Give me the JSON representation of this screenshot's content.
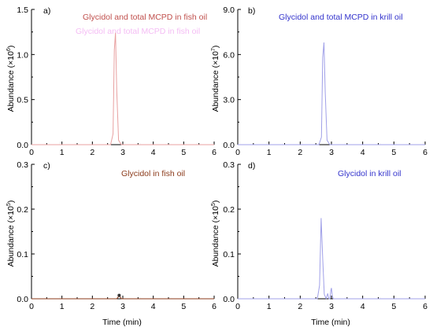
{
  "figure": {
    "panels": [
      {
        "panel_label": "a)",
        "ylabel": "Abundance",
        "ylabel_multiplier": "(×10",
        "ylabel_exponent": "6",
        "ylabel_close": ")",
        "legend": "Glycidol and total MCPD in fish oil",
        "legend_ghost": "Glycidol and total MCPD in fish oil",
        "legend_color": "#c0504d",
        "ghost_color": "#e040e0",
        "xlabel": "",
        "yticks": [
          "0.0",
          "0.5",
          "1.0",
          "1.5"
        ],
        "xticks": [
          "0",
          "1",
          "2",
          "3",
          "4",
          "5",
          "6"
        ]
      },
      {
        "panel_label": "b)",
        "ylabel": "Abundance",
        "ylabel_multiplier": "(×10",
        "ylabel_exponent": "7",
        "ylabel_close": ")",
        "legend": "Glycidol and total MCPD in krill oil",
        "legend_color": "#3333cc",
        "xlabel": "",
        "yticks": [
          "0.0",
          "3.0",
          "6.0",
          "9.0"
        ],
        "xticks": [
          "0",
          "1",
          "2",
          "3",
          "4",
          "5",
          "6"
        ]
      },
      {
        "panel_label": "c)",
        "ylabel": "Abundance",
        "ylabel_multiplier": "(×10",
        "ylabel_exponent": "5",
        "ylabel_close": ")",
        "legend": "Glycidol in fish oil",
        "legend_color": "#8b3a1a",
        "xlabel": "Time (min)",
        "yticks": [
          "0.0",
          "0.1",
          "0.2",
          "0.3"
        ],
        "xticks": [
          "0",
          "1",
          "2",
          "3",
          "4",
          "5",
          "6"
        ]
      },
      {
        "panel_label": "d)",
        "ylabel": "Abundance",
        "ylabel_multiplier": "(×10",
        "ylabel_exponent": "5",
        "ylabel_close": ")",
        "legend": "Glycidol in krill oil",
        "legend_color": "#3333cc",
        "xlabel": "Time (min)",
        "yticks": [
          "0.0",
          "0.1",
          "0.2",
          "0.3"
        ],
        "xticks": [
          "0",
          "1",
          "2",
          "3",
          "4",
          "5",
          "6"
        ]
      }
    ]
  },
  "chart_data": [
    {
      "type": "line",
      "panel": "a)",
      "title": "",
      "xlabel": "",
      "ylabel": "Abundance (×10^6)",
      "xlim": [
        0,
        6
      ],
      "ylim": [
        0,
        1.5
      ],
      "grid": false,
      "legend_placement": "top-center",
      "series": [
        {
          "name": "Glycidol and total MCPD in fish oil",
          "color": "#e8a0a0",
          "x": [
            0,
            2.6,
            2.68,
            2.72,
            2.76,
            2.8,
            2.86,
            2.95,
            6
          ],
          "y": [
            0,
            0,
            0.12,
            1.05,
            1.24,
            0.6,
            0.05,
            0,
            0
          ]
        }
      ]
    },
    {
      "type": "line",
      "panel": "b)",
      "title": "",
      "xlabel": "",
      "ylabel": "Abundance (×10^7)",
      "xlim": [
        0,
        6
      ],
      "ylim": [
        0,
        9.0
      ],
      "grid": false,
      "legend_placement": "top-center",
      "series": [
        {
          "name": "Glycidol and total MCPD in krill oil",
          "color": "#a0a0e8",
          "x": [
            0,
            2.6,
            2.68,
            2.72,
            2.76,
            2.8,
            2.86,
            2.95,
            6
          ],
          "y": [
            0,
            0,
            0.5,
            5.8,
            6.8,
            3.5,
            0.3,
            0,
            0
          ]
        }
      ]
    },
    {
      "type": "line",
      "panel": "c)",
      "title": "",
      "xlabel": "Time (min)",
      "ylabel": "Abundance (×10^5)",
      "xlim": [
        0,
        6
      ],
      "ylim": [
        0,
        0.3
      ],
      "grid": false,
      "legend_placement": "top-right",
      "series": [
        {
          "name": "Glycidol in fish oil",
          "color": "#8b3a1a",
          "x": [
            0,
            2.8,
            2.85,
            2.9,
            2.95,
            6
          ],
          "y": [
            0,
            0,
            0.004,
            0.006,
            0,
            0
          ]
        }
      ],
      "markers": [
        {
          "x": 2.88,
          "y": 0.006
        }
      ]
    },
    {
      "type": "line",
      "panel": "d)",
      "title": "",
      "xlabel": "Time (min)",
      "ylabel": "Abundance (×10^5)",
      "xlim": [
        0,
        6
      ],
      "ylim": [
        0,
        0.3
      ],
      "grid": false,
      "legend_placement": "top-right",
      "series": [
        {
          "name": "Glycidol in krill oil",
          "color": "#a0a0e8",
          "x": [
            0,
            2.55,
            2.62,
            2.67,
            2.72,
            2.77,
            2.83,
            2.88,
            2.92,
            2.95,
            2.98,
            3.0,
            3.03,
            3.06,
            6
          ],
          "y": [
            0,
            0,
            0.03,
            0.18,
            0.09,
            0.01,
            0,
            0.012,
            0,
            0,
            0.018,
            0.024,
            0.005,
            0,
            0
          ]
        }
      ]
    }
  ]
}
